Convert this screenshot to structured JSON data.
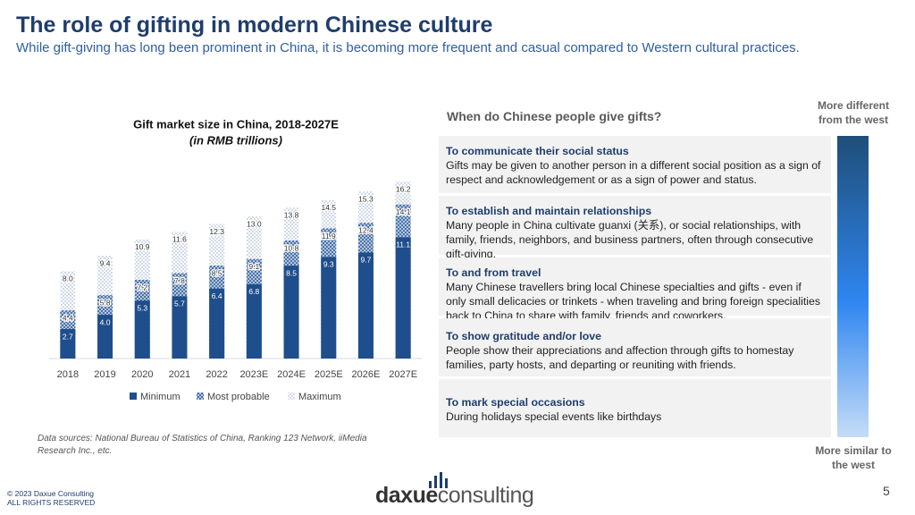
{
  "header": {
    "title": "The role of gifting in modern Chinese culture",
    "subtitle": "While gift-giving has long been prominent in China, it is becoming more frequent and casual compared to Western cultural practices."
  },
  "chart_data": {
    "type": "bar",
    "title": "Gift market size in China, 2018-2027E",
    "subtitle": "(in RMB trillions)",
    "categories": [
      "2018",
      "2019",
      "2020",
      "2021",
      "2022",
      "2023E",
      "2024E",
      "2025E",
      "2026E",
      "2027E"
    ],
    "series": [
      {
        "name": "Minimum",
        "color": "#1f4e8c",
        "pattern": "solid",
        "values": [
          2.7,
          4.0,
          5.3,
          5.7,
          6.4,
          6.8,
          8.5,
          9.3,
          9.7,
          11.1
        ],
        "value_labels": [
          "2.7",
          "4.0",
          "5.3",
          "5.7",
          "6.4",
          "6.8",
          "8.5",
          "9.3",
          "9.7",
          "11.1"
        ]
      },
      {
        "name": "Most probable",
        "color": "#2f5f9e",
        "pattern": "crosshatch",
        "values": [
          4.4,
          5.8,
          7.2,
          7.8,
          8.5,
          9.1,
          10.8,
          11.9,
          12.4,
          14.1
        ],
        "value_labels": [
          "4.4",
          "5.8",
          "7.2",
          "7.8",
          "8.5",
          "9.1",
          "10.8",
          "11.9",
          "12.4",
          "14.1"
        ]
      },
      {
        "name": "Maximum",
        "color": "#8fa3c4",
        "pattern": "dots",
        "values": [
          8.0,
          9.4,
          10.9,
          11.6,
          12.3,
          13.0,
          13.8,
          14.5,
          15.3,
          16.2
        ],
        "value_labels": [
          "8.0",
          "9.4",
          "10.9",
          "11.6",
          "12.3",
          "13.0",
          "13.8",
          "14.5",
          "15.3",
          "16.2"
        ]
      }
    ],
    "legend": "bottom"
  },
  "source": "Data sources: National Bureau of Statistics of China, Ranking 123 Network, iiMedia Research Inc., etc.",
  "panel": {
    "title": "When do Chinese people give gifts?",
    "items": [
      {
        "title": "To communicate their social status",
        "text": "Gifts may be given to another person in a different social position as a sign of respect and acknowledgement or as a sign of power and status."
      },
      {
        "title": "To establish and maintain relationships",
        "text": "Many people in China cultivate guanxi (关系), or social relationships, with family, friends, neighbors, and business partners, often through consecutive gift-giving."
      },
      {
        "title": "To and from travel",
        "text": "Many Chinese travellers bring local Chinese specialties and gifts - even if only small delicacies or trinkets - when traveling and bring foreign specialities back to China to share with family, friends and coworkers."
      },
      {
        "title": "To show gratitude and/or love",
        "text": "People show their appreciations and affection through gifts to homestay families, party hosts, and departing or reuniting with friends."
      },
      {
        "title": "To mark special occasions",
        "text": "During holidays special events like birthdays"
      }
    ],
    "scale_top": "More different from the west",
    "scale_bottom": "More similar to the west"
  },
  "footer": {
    "copyright": "© 2023 Daxue Consulting",
    "rights": "ALL RIGHTS RESERVED",
    "logo_a": "daxue",
    "logo_b": "consulting",
    "page": "5"
  }
}
